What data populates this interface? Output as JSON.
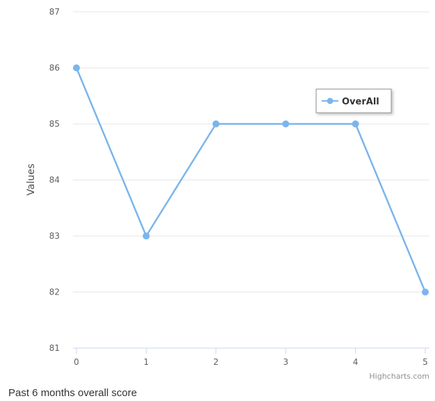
{
  "chart_data": {
    "type": "line",
    "x": [
      0,
      1,
      2,
      3,
      4,
      5
    ],
    "series": [
      {
        "name": "OverAll",
        "values": [
          86,
          83,
          85,
          85,
          85,
          82
        ],
        "color": "#7cb5ec"
      }
    ],
    "xlim": [
      0,
      5
    ],
    "ylim": [
      81,
      87
    ],
    "x_ticks": [
      0,
      1,
      2,
      3,
      4,
      5
    ],
    "y_ticks": [
      81,
      82,
      83,
      84,
      85,
      86,
      87
    ],
    "xlabel": "",
    "ylabel": "Values",
    "grid": true,
    "legend_position": "top-right"
  },
  "credits": "Highcharts.com",
  "caption": "Past 6 months overall score"
}
